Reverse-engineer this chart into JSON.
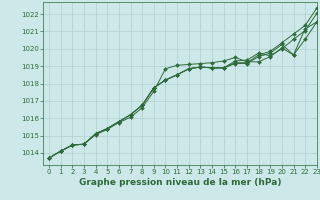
{
  "title": "Graphe pression niveau de la mer (hPa)",
  "bg_color": "#cde8e8",
  "grid_color": "#b0cfcf",
  "line_color": "#2d6b3a",
  "xlim": [
    -0.5,
    23
  ],
  "ylim": [
    1013.3,
    1022.7
  ],
  "yticks": [
    1014,
    1015,
    1016,
    1017,
    1018,
    1019,
    1020,
    1021,
    1022
  ],
  "xticks": [
    0,
    1,
    2,
    3,
    4,
    5,
    6,
    7,
    8,
    9,
    10,
    11,
    12,
    13,
    14,
    15,
    16,
    17,
    18,
    19,
    20,
    21,
    22,
    23
  ],
  "line1": [
    1013.7,
    1014.1,
    1014.45,
    1014.5,
    1015.05,
    1015.35,
    1015.75,
    1016.05,
    1016.6,
    1017.55,
    1018.85,
    1019.05,
    1019.1,
    1019.15,
    1019.2,
    1019.3,
    1019.5,
    1019.25,
    1019.25,
    1019.55,
    1020.05,
    1019.65,
    1021.15,
    1021.55
  ],
  "line2": [
    1013.7,
    1014.1,
    1014.45,
    1014.5,
    1015.1,
    1015.4,
    1015.8,
    1016.2,
    1016.75,
    1017.75,
    1018.2,
    1018.5,
    1018.85,
    1018.95,
    1018.9,
    1018.9,
    1019.3,
    1019.35,
    1019.75,
    1019.6,
    1020.0,
    1020.55,
    1021.05,
    1022.05
  ],
  "line3": [
    1013.7,
    1014.1,
    1014.45,
    1014.5,
    1015.1,
    1015.4,
    1015.8,
    1016.2,
    1016.75,
    1017.75,
    1018.2,
    1018.5,
    1018.85,
    1018.95,
    1018.9,
    1018.9,
    1019.15,
    1019.15,
    1019.55,
    1019.75,
    1020.25,
    1019.65,
    1020.55,
    1021.55
  ],
  "line4": [
    1013.7,
    1014.1,
    1014.45,
    1014.5,
    1015.1,
    1015.4,
    1015.8,
    1016.2,
    1016.75,
    1017.75,
    1018.2,
    1018.5,
    1018.85,
    1018.95,
    1018.9,
    1018.9,
    1019.2,
    1019.2,
    1019.65,
    1019.85,
    1020.35,
    1020.85,
    1021.35,
    1022.35
  ],
  "title_fontsize": 6.5,
  "tick_fontsize": 5,
  "lw": 0.7,
  "ms": 2.0
}
